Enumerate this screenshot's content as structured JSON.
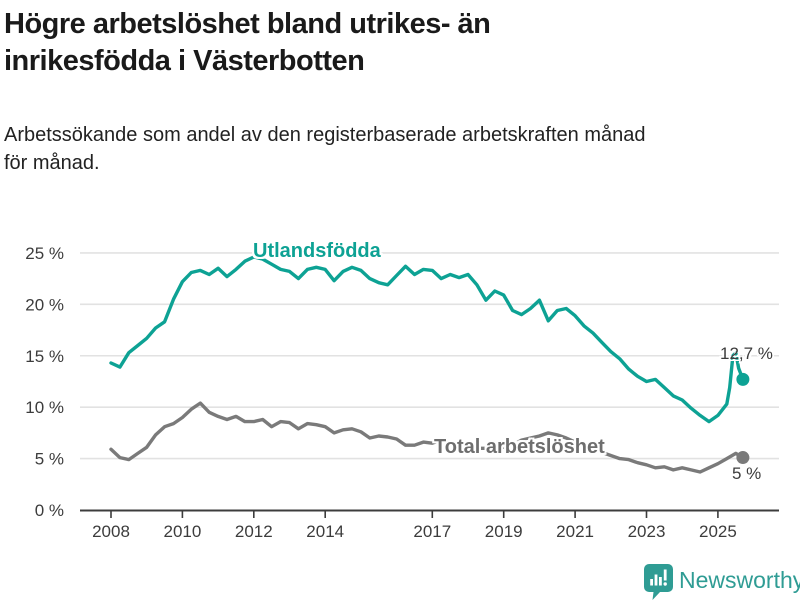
{
  "header": {
    "title_lines": [
      "Högre arbetslöshet bland utrikes- än",
      "inrikesfödda i Västerbotten"
    ],
    "subtitle_lines": [
      "Arbetssökande som andel av den registerbaserade arbetskraften månad",
      "för månad."
    ]
  },
  "chart_data": {
    "type": "line",
    "title": "Högre arbetslöshet bland utrikes- än inrikesfödda i Västerbotten",
    "subtitle": "Arbetssökande som andel av den registerbaserade arbetskraften månad för månad.",
    "xlabel": "",
    "ylabel": "",
    "xlim": [
      2008,
      2026
    ],
    "ylim": [
      0,
      25
    ],
    "grid": true,
    "legend_position": "inline-labels",
    "x_ticks": [
      2008,
      2010,
      2012,
      2014,
      2017,
      2019,
      2021,
      2023,
      2025
    ],
    "y_ticks": [
      0,
      5,
      10,
      15,
      20,
      25
    ],
    "y_tick_suffix": " %",
    "gridline_color": "#e2e2e2",
    "axis_color": "#3c3c3c",
    "series": [
      {
        "name": "Utlandsfödda",
        "color": "#0da294",
        "end_label": "12,7 %",
        "end_value": 12.7,
        "points": [
          [
            2008.0,
            14.3
          ],
          [
            2008.25,
            13.9
          ],
          [
            2008.5,
            15.3
          ],
          [
            2008.75,
            16.0
          ],
          [
            2009.0,
            16.7
          ],
          [
            2009.25,
            17.7
          ],
          [
            2009.5,
            18.3
          ],
          [
            2009.75,
            20.5
          ],
          [
            2010.0,
            22.2
          ],
          [
            2010.25,
            23.1
          ],
          [
            2010.5,
            23.3
          ],
          [
            2010.75,
            22.9
          ],
          [
            2011.0,
            23.5
          ],
          [
            2011.25,
            22.7
          ],
          [
            2011.5,
            23.4
          ],
          [
            2011.75,
            24.2
          ],
          [
            2012.0,
            24.6
          ],
          [
            2012.25,
            24.4
          ],
          [
            2012.5,
            23.9
          ],
          [
            2012.75,
            23.4
          ],
          [
            2013.0,
            23.2
          ],
          [
            2013.25,
            22.5
          ],
          [
            2013.5,
            23.4
          ],
          [
            2013.75,
            23.6
          ],
          [
            2014.0,
            23.4
          ],
          [
            2014.25,
            22.3
          ],
          [
            2014.5,
            23.2
          ],
          [
            2014.75,
            23.6
          ],
          [
            2015.0,
            23.3
          ],
          [
            2015.25,
            22.5
          ],
          [
            2015.5,
            22.1
          ],
          [
            2015.75,
            21.9
          ],
          [
            2016.0,
            22.8
          ],
          [
            2016.25,
            23.7
          ],
          [
            2016.5,
            22.9
          ],
          [
            2016.75,
            23.4
          ],
          [
            2017.0,
            23.3
          ],
          [
            2017.25,
            22.5
          ],
          [
            2017.5,
            22.9
          ],
          [
            2017.75,
            22.6
          ],
          [
            2018.0,
            22.9
          ],
          [
            2018.25,
            21.9
          ],
          [
            2018.5,
            20.4
          ],
          [
            2018.75,
            21.3
          ],
          [
            2019.0,
            20.9
          ],
          [
            2019.25,
            19.4
          ],
          [
            2019.5,
            19.0
          ],
          [
            2019.75,
            19.6
          ],
          [
            2020.0,
            20.4
          ],
          [
            2020.25,
            18.4
          ],
          [
            2020.5,
            19.4
          ],
          [
            2020.75,
            19.6
          ],
          [
            2021.0,
            18.9
          ],
          [
            2021.25,
            17.9
          ],
          [
            2021.5,
            17.2
          ],
          [
            2021.75,
            16.3
          ],
          [
            2022.0,
            15.4
          ],
          [
            2022.25,
            14.7
          ],
          [
            2022.5,
            13.7
          ],
          [
            2022.75,
            13.0
          ],
          [
            2023.0,
            12.5
          ],
          [
            2023.25,
            12.7
          ],
          [
            2023.5,
            11.9
          ],
          [
            2023.75,
            11.1
          ],
          [
            2024.0,
            10.7
          ],
          [
            2024.25,
            9.9
          ],
          [
            2024.5,
            9.2
          ],
          [
            2024.75,
            8.6
          ],
          [
            2025.0,
            9.2
          ],
          [
            2025.25,
            10.3
          ],
          [
            2025.33,
            11.9
          ],
          [
            2025.42,
            15.0
          ],
          [
            2025.5,
            15.3
          ],
          [
            2025.58,
            13.8
          ],
          [
            2025.7,
            12.7
          ]
        ]
      },
      {
        "name": "Total arbetslöshet",
        "color": "#7a7a7a",
        "end_label": "5 %",
        "end_value": 5,
        "points": [
          [
            2008.0,
            5.9
          ],
          [
            2008.25,
            5.1
          ],
          [
            2008.5,
            4.9
          ],
          [
            2008.75,
            5.5
          ],
          [
            2009.0,
            6.1
          ],
          [
            2009.25,
            7.3
          ],
          [
            2009.5,
            8.1
          ],
          [
            2009.75,
            8.4
          ],
          [
            2010.0,
            9.0
          ],
          [
            2010.25,
            9.8
          ],
          [
            2010.5,
            10.4
          ],
          [
            2010.75,
            9.5
          ],
          [
            2011.0,
            9.1
          ],
          [
            2011.25,
            8.8
          ],
          [
            2011.5,
            9.1
          ],
          [
            2011.75,
            8.6
          ],
          [
            2012.0,
            8.6
          ],
          [
            2012.25,
            8.8
          ],
          [
            2012.5,
            8.1
          ],
          [
            2012.75,
            8.6
          ],
          [
            2013.0,
            8.5
          ],
          [
            2013.25,
            7.9
          ],
          [
            2013.5,
            8.4
          ],
          [
            2013.75,
            8.3
          ],
          [
            2014.0,
            8.1
          ],
          [
            2014.25,
            7.5
          ],
          [
            2014.5,
            7.8
          ],
          [
            2014.75,
            7.9
          ],
          [
            2015.0,
            7.6
          ],
          [
            2015.25,
            7.0
          ],
          [
            2015.5,
            7.2
          ],
          [
            2015.75,
            7.1
          ],
          [
            2016.0,
            6.9
          ],
          [
            2016.25,
            6.3
          ],
          [
            2016.5,
            6.3
          ],
          [
            2016.75,
            6.6
          ],
          [
            2017.0,
            6.5
          ],
          [
            2017.25,
            6.8
          ],
          [
            2017.5,
            6.5
          ],
          [
            2017.75,
            6.3
          ],
          [
            2018.0,
            6.2
          ],
          [
            2018.25,
            6.0
          ],
          [
            2018.5,
            6.0
          ],
          [
            2018.75,
            6.1
          ],
          [
            2019.0,
            6.1
          ],
          [
            2019.25,
            6.3
          ],
          [
            2019.5,
            6.8
          ],
          [
            2019.75,
            7.0
          ],
          [
            2020.0,
            7.2
          ],
          [
            2020.25,
            7.5
          ],
          [
            2020.5,
            7.3
          ],
          [
            2020.75,
            7.0
          ],
          [
            2021.0,
            6.6
          ],
          [
            2021.25,
            6.2
          ],
          [
            2021.5,
            5.9
          ],
          [
            2021.75,
            5.6
          ],
          [
            2022.0,
            5.3
          ],
          [
            2022.25,
            5.0
          ],
          [
            2022.5,
            4.9
          ],
          [
            2022.75,
            4.6
          ],
          [
            2023.0,
            4.4
          ],
          [
            2023.25,
            4.1
          ],
          [
            2023.5,
            4.2
          ],
          [
            2023.75,
            3.9
          ],
          [
            2024.0,
            4.1
          ],
          [
            2024.25,
            3.9
          ],
          [
            2024.5,
            3.7
          ],
          [
            2024.75,
            4.1
          ],
          [
            2025.0,
            4.5
          ],
          [
            2025.25,
            5.0
          ],
          [
            2025.5,
            5.5
          ],
          [
            2025.7,
            5.1
          ]
        ]
      }
    ]
  },
  "footer": {
    "brand": "Newsworthy",
    "brand_color": "#2f9c94",
    "logo_icon": "newsworthy-speech-bubble-bar-chart-icon"
  }
}
